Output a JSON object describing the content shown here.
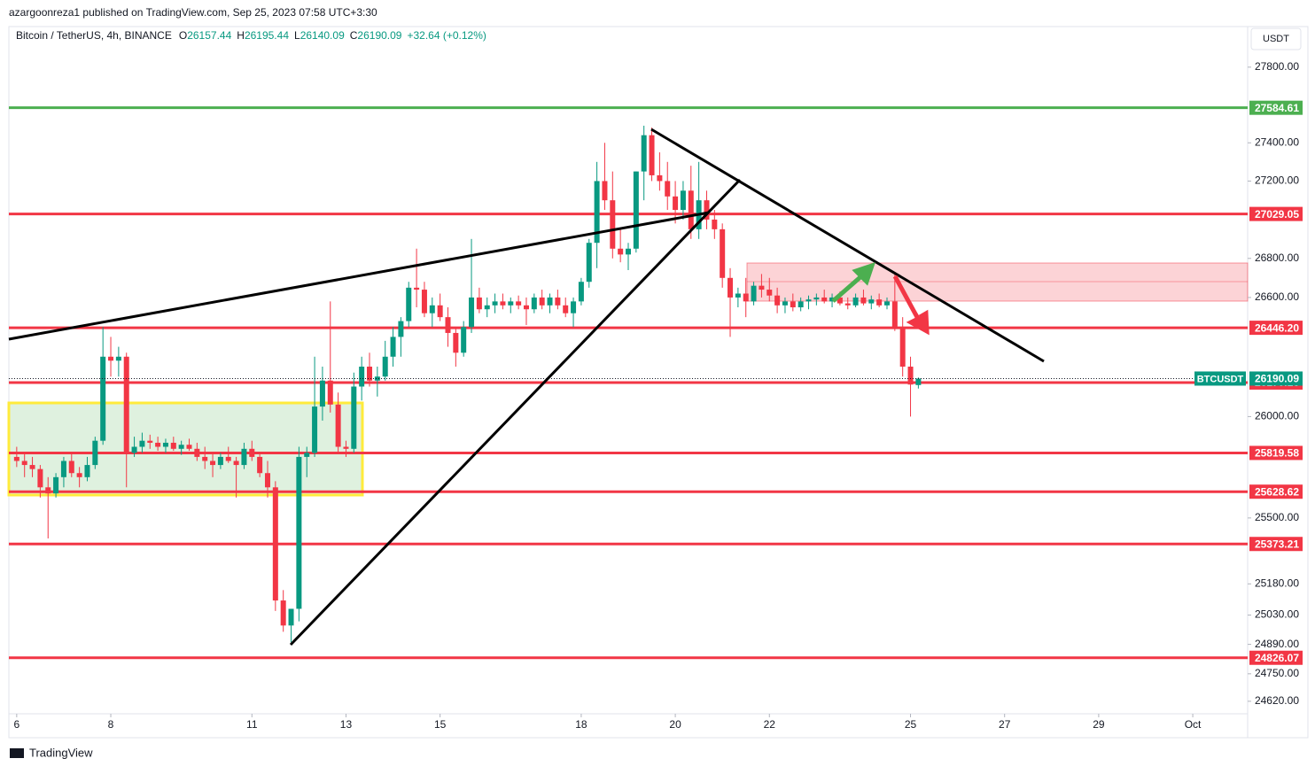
{
  "header": {
    "publisher": "azargoonreza1 published on TradingView.com, Sep 25, 2023 07:58 UTC+3:30",
    "symbol": "Bitcoin / TetherUS, 4h, BINANCE",
    "ohlc": [
      {
        "key": "O",
        "text": "26157.44"
      },
      {
        "key": "H",
        "text": "26195.44"
      },
      {
        "key": "L",
        "text": "26140.09"
      },
      {
        "key": "C",
        "text": "26190.09"
      }
    ],
    "change": "+32.64 (+0.12%)",
    "currency": "USDT"
  },
  "footer": {
    "brand": "TradingView"
  },
  "chart_data": {
    "type": "candlestick",
    "log_scale": true,
    "up_color": "#089981",
    "down_color": "#f23645",
    "xlim": [
      -1,
      157
    ],
    "ylim": [
      24453,
      28017
    ],
    "xticks": [
      {
        "value": 0,
        "label": "6"
      },
      {
        "value": 12,
        "label": "8"
      },
      {
        "value": 30,
        "label": "11"
      },
      {
        "value": 42,
        "label": "13"
      },
      {
        "value": 54,
        "label": "15"
      },
      {
        "value": 72,
        "label": "18"
      },
      {
        "value": 84,
        "label": "20"
      },
      {
        "value": 96,
        "label": "22"
      },
      {
        "value": 114,
        "label": "25"
      },
      {
        "value": 126,
        "label": "27"
      },
      {
        "value": 138,
        "label": "29"
      },
      {
        "value": 150,
        "label": "Oct"
      }
    ],
    "yticks": [
      {
        "value": 27800,
        "label": "27800.00"
      },
      {
        "value": 27400,
        "label": "27400.00"
      },
      {
        "value": 27200,
        "label": "27200.00"
      },
      {
        "value": 26800,
        "label": "26800.00"
      },
      {
        "value": 26600,
        "label": "26600.00"
      },
      {
        "value": 26000,
        "label": "26000.00"
      },
      {
        "value": 25500,
        "label": "25500.00"
      },
      {
        "value": 25180,
        "label": "25180.00"
      },
      {
        "value": 25030,
        "label": "25030.00"
      },
      {
        "value": 24890,
        "label": "24890.00"
      },
      {
        "value": 24750,
        "label": "24750.00"
      },
      {
        "value": 24620,
        "label": "24620.00"
      }
    ],
    "hlines": [
      {
        "value": 27584.61,
        "color": "#4caf50"
      },
      {
        "value": 27029.05,
        "color": "#f23645"
      },
      {
        "value": 26446.2,
        "label": "26446.20",
        "color": "#f23645"
      },
      {
        "value": 26170.16,
        "color": "#f23645"
      },
      {
        "value": 25819.58,
        "color": "#f23645"
      },
      {
        "value": 25628.62,
        "color": "#f23645"
      },
      {
        "value": 25373.21,
        "color": "#f23645"
      },
      {
        "value": 24826.07,
        "color": "#f23645"
      }
    ],
    "last_price": {
      "name": "BTCUSDT",
      "value": 26190.09,
      "color": "#089981"
    },
    "open": [
      25800,
      25780,
      25760,
      25740,
      25650,
      25620,
      25700,
      25780,
      25720,
      25700,
      25760,
      25880,
      26300,
      26280,
      26300,
      25820,
      25850,
      25880,
      25870,
      25850,
      25870,
      25840,
      25860,
      25840,
      25800,
      25780,
      25760,
      25800,
      25780,
      25760,
      25840,
      25800,
      25720,
      25650,
      25100,
      24980,
      25060,
      25800,
      25820,
      26050,
      26180,
      26060,
      25850,
      25840,
      26150,
      26250,
      26180,
      26200,
      26300,
      26400,
      26480,
      26650,
      26640,
      26520,
      26560,
      26500,
      26420,
      26320,
      26450,
      26600,
      26540,
      26560,
      26580,
      26560,
      26580,
      26560,
      26540,
      26600,
      26560,
      26600,
      26560,
      26520,
      26580,
      26680,
      26880,
      27200,
      27100,
      26850,
      26820,
      26850,
      27250,
      27440,
      27230,
      27200,
      27120,
      27050,
      27150,
      26950,
      27100,
      27000,
      26950,
      26700,
      26600,
      26620,
      26580,
      26660,
      26640,
      26610,
      26560,
      26580,
      26550,
      26580,
      26590,
      26600,
      26580,
      26600,
      26570,
      26560,
      26600,
      26570,
      26590,
      26560,
      26580,
      26450,
      26250,
      26157.44
    ],
    "high": [
      25850,
      25820,
      25800,
      25760,
      25700,
      25720,
      25800,
      25820,
      25750,
      25800,
      25900,
      26450,
      26400,
      26350,
      26320,
      25900,
      25920,
      25910,
      25900,
      25890,
      25900,
      25880,
      25890,
      25870,
      25850,
      25820,
      25820,
      25850,
      25800,
      25870,
      25880,
      25820,
      25780,
      25680,
      25150,
      25060,
      25850,
      25850,
      26300,
      26250,
      26580,
      26120,
      25880,
      26220,
      26300,
      26320,
      26250,
      26380,
      26450,
      26500,
      26680,
      26850,
      26680,
      26600,
      26620,
      26550,
      26450,
      26480,
      26900,
      26650,
      26600,
      26620,
      26620,
      26600,
      26610,
      26600,
      26620,
      26640,
      26620,
      26640,
      26600,
      26600,
      26700,
      26900,
      27300,
      27400,
      27250,
      26950,
      26880,
      27250,
      27490,
      27480,
      27350,
      27300,
      27200,
      27200,
      27280,
      27300,
      27150,
      27050,
      26980,
      26750,
      26650,
      26700,
      26680,
      26720,
      26700,
      26650,
      26600,
      26620,
      26600,
      26610,
      26620,
      26640,
      26620,
      26630,
      26600,
      26620,
      26640,
      26610,
      26620,
      26600,
      26720,
      26500,
      26300,
      26195.44
    ],
    "low": [
      25750,
      25700,
      25700,
      25600,
      25400,
      25600,
      25650,
      25700,
      25650,
      25680,
      25740,
      25860,
      26200,
      26200,
      25650,
      25800,
      25820,
      25840,
      25830,
      25820,
      25830,
      25810,
      25830,
      25780,
      25740,
      25700,
      25740,
      25770,
      25600,
      25740,
      25780,
      25700,
      25600,
      25050,
      24950,
      24900,
      25000,
      25700,
      25800,
      25980,
      26020,
      25820,
      25800,
      25820,
      26080,
      26150,
      26100,
      26180,
      26250,
      26300,
      26450,
      26550,
      26500,
      26450,
      26480,
      26350,
      26250,
      26300,
      26420,
      26520,
      26500,
      26520,
      26540,
      26520,
      26540,
      26460,
      26520,
      26540,
      26520,
      26540,
      26500,
      26450,
      26560,
      26650,
      26750,
      27050,
      26800,
      26780,
      26740,
      26830,
      27100,
      27200,
      27150,
      27050,
      26980,
      27000,
      26900,
      26900,
      26950,
      26900,
      26650,
      26400,
      26550,
      26500,
      26560,
      26600,
      26580,
      26520,
      26520,
      26530,
      26530,
      26540,
      26560,
      26570,
      26550,
      26560,
      26540,
      26550,
      26560,
      26540,
      26550,
      26540,
      26430,
      26200,
      26000,
      26140.09
    ],
    "close": [
      25780,
      25760,
      25740,
      25650,
      25620,
      25700,
      25780,
      25720,
      25700,
      25760,
      25880,
      26300,
      26280,
      26300,
      25820,
      25850,
      25880,
      25870,
      25850,
      25870,
      25840,
      25860,
      25840,
      25800,
      25780,
      25760,
      25800,
      25780,
      25760,
      25840,
      25800,
      25720,
      25650,
      25100,
      24980,
      25060,
      25800,
      25820,
      26050,
      26180,
      26060,
      25850,
      25840,
      26150,
      26250,
      26180,
      26200,
      26300,
      26400,
      26480,
      26650,
      26640,
      26520,
      26560,
      26500,
      26420,
      26320,
      26450,
      26600,
      26540,
      26560,
      26580,
      26560,
      26580,
      26560,
      26540,
      26600,
      26560,
      26600,
      26560,
      26520,
      26580,
      26680,
      26880,
      27200,
      27100,
      26850,
      26820,
      26850,
      27250,
      27440,
      27230,
      27200,
      27120,
      27050,
      27150,
      26950,
      27100,
      27000,
      26950,
      26700,
      26600,
      26620,
      26580,
      26660,
      26640,
      26610,
      26560,
      26580,
      26550,
      26580,
      26590,
      26600,
      26580,
      26600,
      26570,
      26560,
      26600,
      26570,
      26590,
      26560,
      26580,
      26450,
      26250,
      26160,
      26190.09
    ]
  }
}
